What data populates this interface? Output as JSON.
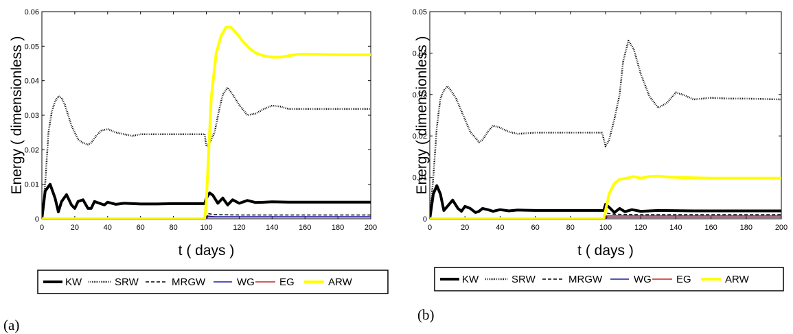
{
  "chart_data": [
    {
      "type": "line",
      "panel_label": "(a)",
      "xlabel": "t ( days )",
      "ylabel": "Energy ( dimensionless )",
      "xlim": [
        0,
        200
      ],
      "ylim": [
        0,
        0.06
      ],
      "xticks": [
        "0",
        "20",
        "40",
        "60",
        "80",
        "100",
        "120",
        "140",
        "160",
        "180",
        "200"
      ],
      "yticks": [
        "0",
        "0.01",
        "0.02",
        "0.03",
        "0.04",
        "0.05",
        "0.06"
      ],
      "grid": false,
      "legend_position": "bottom-outside",
      "series": [
        {
          "name": "KW",
          "color": "#000000",
          "style": "solid-thick",
          "x": [
            0,
            2,
            5,
            8,
            10,
            12,
            15,
            18,
            20,
            22,
            25,
            28,
            30,
            32,
            35,
            38,
            40,
            45,
            50,
            60,
            70,
            80,
            90,
            99,
            100,
            102,
            104,
            107,
            110,
            113,
            116,
            120,
            125,
            130,
            140,
            150,
            160,
            180,
            200
          ],
          "y": [
            0,
            0.008,
            0.01,
            0.006,
            0.002,
            0.005,
            0.007,
            0.004,
            0.003,
            0.005,
            0.0055,
            0.003,
            0.003,
            0.005,
            0.0045,
            0.004,
            0.0048,
            0.0042,
            0.0045,
            0.0043,
            0.0043,
            0.0044,
            0.0044,
            0.0044,
            0.006,
            0.0075,
            0.0068,
            0.0045,
            0.006,
            0.004,
            0.0055,
            0.0045,
            0.0053,
            0.0047,
            0.0049,
            0.0048,
            0.0048,
            0.0048,
            0.0048
          ]
        },
        {
          "name": "SRW",
          "color": "#000000",
          "style": "dotted",
          "x": [
            0,
            2,
            4,
            6,
            8,
            10,
            12,
            14,
            16,
            18,
            20,
            22,
            25,
            28,
            30,
            33,
            36,
            40,
            45,
            50,
            55,
            60,
            70,
            80,
            90,
            99,
            100,
            102,
            105,
            108,
            110,
            113,
            116,
            120,
            125,
            130,
            135,
            140,
            145,
            150,
            160,
            180,
            200
          ],
          "y": [
            0,
            0.01,
            0.025,
            0.031,
            0.034,
            0.0355,
            0.035,
            0.033,
            0.03,
            0.027,
            0.025,
            0.023,
            0.022,
            0.0215,
            0.022,
            0.024,
            0.0255,
            0.026,
            0.025,
            0.0245,
            0.024,
            0.0245,
            0.0245,
            0.0245,
            0.0245,
            0.0245,
            0.021,
            0.022,
            0.025,
            0.032,
            0.036,
            0.038,
            0.036,
            0.033,
            0.03,
            0.0305,
            0.0318,
            0.0328,
            0.0325,
            0.0318,
            0.0318,
            0.0318,
            0.0318
          ]
        },
        {
          "name": "MRGW",
          "color": "#000000",
          "style": "dashed",
          "x": [
            0,
            100,
            101,
            105,
            120,
            200
          ],
          "y": [
            0,
            0,
            0.0015,
            0.0012,
            0.0011,
            0.0011
          ]
        },
        {
          "name": "WG",
          "color": "#1a1aa6",
          "style": "solid",
          "x": [
            0,
            100,
            101,
            105,
            200
          ],
          "y": [
            0,
            0,
            0.0008,
            0.0006,
            0.0006
          ]
        },
        {
          "name": "EG",
          "color": "#cc2222",
          "style": "solid",
          "x": [
            0,
            100,
            101,
            200
          ],
          "y": [
            0,
            0,
            0.0005,
            0.0005
          ]
        },
        {
          "name": "ARW",
          "color": "#ffff00",
          "style": "solid-thick",
          "x": [
            0,
            99,
            100,
            103,
            106,
            109,
            112,
            115,
            118,
            122,
            126,
            130,
            135,
            140,
            145,
            150,
            155,
            160,
            170,
            180,
            200
          ],
          "y": [
            0,
            0,
            0.005,
            0.035,
            0.048,
            0.053,
            0.0555,
            0.0555,
            0.054,
            0.0515,
            0.0495,
            0.048,
            0.0472,
            0.0468,
            0.0468,
            0.0472,
            0.0476,
            0.0477,
            0.0476,
            0.0475,
            0.0475
          ]
        }
      ]
    },
    {
      "type": "line",
      "panel_label": "(b)",
      "xlabel": "t ( days )",
      "ylabel": "Energy ( dimensionless )",
      "xlim": [
        0,
        200
      ],
      "ylim": [
        0,
        0.05
      ],
      "xticks": [
        "0",
        "20",
        "40",
        "60",
        "80",
        "100",
        "120",
        "140",
        "160",
        "180",
        "200"
      ],
      "yticks": [
        "0",
        "0.01",
        "0.02",
        "0.03",
        "0.04",
        "0.05"
      ],
      "grid": false,
      "legend_position": "bottom-outside",
      "series": [
        {
          "name": "KW",
          "color": "#000000",
          "style": "solid-thick",
          "x": [
            0,
            2,
            4,
            6,
            8,
            10,
            13,
            16,
            18,
            20,
            23,
            26,
            28,
            30,
            33,
            36,
            40,
            45,
            50,
            60,
            80,
            99,
            100,
            102,
            105,
            108,
            111,
            115,
            120,
            130,
            150,
            200
          ],
          "y": [
            0,
            0.006,
            0.008,
            0.006,
            0.002,
            0.003,
            0.0045,
            0.0025,
            0.0018,
            0.003,
            0.0025,
            0.0015,
            0.0018,
            0.0025,
            0.0022,
            0.0018,
            0.0022,
            0.0019,
            0.0021,
            0.002,
            0.002,
            0.002,
            0.0035,
            0.0028,
            0.0015,
            0.0025,
            0.0017,
            0.0022,
            0.0018,
            0.002,
            0.0019,
            0.0019
          ]
        },
        {
          "name": "SRW",
          "color": "#000000",
          "style": "dotted",
          "x": [
            0,
            2,
            4,
            6,
            8,
            10,
            12,
            15,
            18,
            20,
            23,
            26,
            28,
            30,
            33,
            36,
            40,
            45,
            50,
            60,
            70,
            80,
            90,
            98,
            100,
            102,
            105,
            108,
            110,
            113,
            116,
            120,
            125,
            130,
            135,
            140,
            145,
            150,
            160,
            170,
            180,
            200
          ],
          "y": [
            0,
            0.01,
            0.022,
            0.029,
            0.031,
            0.032,
            0.031,
            0.029,
            0.026,
            0.024,
            0.021,
            0.0195,
            0.0185,
            0.019,
            0.021,
            0.0225,
            0.022,
            0.021,
            0.0205,
            0.0208,
            0.0208,
            0.0208,
            0.0208,
            0.0208,
            0.0175,
            0.019,
            0.024,
            0.03,
            0.038,
            0.043,
            0.041,
            0.035,
            0.0295,
            0.0268,
            0.028,
            0.0305,
            0.0298,
            0.0288,
            0.0292,
            0.029,
            0.029,
            0.0288
          ]
        },
        {
          "name": "MRGW",
          "color": "#000000",
          "style": "dashed",
          "x": [
            0,
            100,
            101,
            105,
            120,
            200
          ],
          "y": [
            0,
            0,
            0.0013,
            0.0011,
            0.001,
            0.001
          ]
        },
        {
          "name": "WG",
          "color": "#1a1aa6",
          "style": "solid",
          "x": [
            0,
            100,
            101,
            200
          ],
          "y": [
            0,
            0,
            0.0004,
            0.0004
          ]
        },
        {
          "name": "EG",
          "color": "#cc2222",
          "style": "solid",
          "x": [
            0,
            100,
            101,
            200
          ],
          "y": [
            0,
            0,
            0.0007,
            0.0007
          ]
        },
        {
          "name": "ARW",
          "color": "#ffff00",
          "style": "solid-thick",
          "x": [
            0,
            99,
            100,
            102,
            105,
            108,
            112,
            116,
            120,
            125,
            130,
            135,
            140,
            150,
            160,
            180,
            200
          ],
          "y": [
            0,
            0,
            0.002,
            0.006,
            0.0085,
            0.0095,
            0.0098,
            0.0102,
            0.0098,
            0.0102,
            0.0103,
            0.0101,
            0.01,
            0.0099,
            0.0098,
            0.0098,
            0.0098
          ]
        }
      ]
    }
  ]
}
